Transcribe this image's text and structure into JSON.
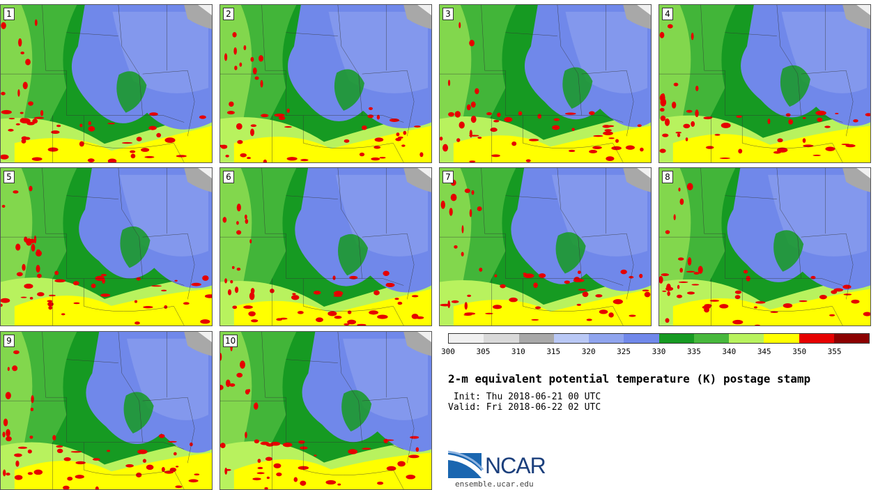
{
  "figure": {
    "title": "2-m equivalent potential temperature (K) postage stamp",
    "init": " Init: Thu 2018-06-21 00 UTC",
    "valid": "Valid: Fri 2018-06-22 02 UTC"
  },
  "members": [
    "1",
    "2",
    "3",
    "4",
    "5",
    "6",
    "7",
    "8",
    "9",
    "10"
  ],
  "colorbar": {
    "colors": [
      "#f0f0f0",
      "#d9d9d9",
      "#a8a8a8",
      "#b9c8f5",
      "#8fa4ee",
      "#7088ea",
      "#169a22",
      "#47b83c",
      "#b8f25e",
      "#ffff00",
      "#e60000",
      "#8b0000"
    ],
    "tick_labels": [
      "300",
      "305",
      "310",
      "315",
      "320",
      "325",
      "330",
      "335",
      "340",
      "345",
      "350",
      "355"
    ]
  },
  "logo": {
    "name": "NCAR",
    "url": "ensemble.ucar.edu"
  }
}
